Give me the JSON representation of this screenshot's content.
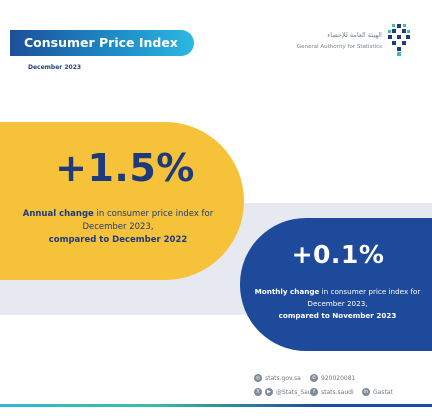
{
  "header": {
    "title": "Consumer Price Index",
    "period": "December 2023"
  },
  "logo": {
    "arabic_name": "الهيئة العامة للإحصاء",
    "english_name": "General Authority for Statistics",
    "icon": "gastat-logo-icon"
  },
  "annual": {
    "value": "+1.5%",
    "desc_bold_1": "Annual change",
    "desc_text_1": " in consumer price index for December 2023,",
    "desc_bold_2": "compared to December 2022"
  },
  "monthly": {
    "value": "+0.1%",
    "desc_bold_1": "Monthly change",
    "desc_text_1": " in consumer price index for December 2023,",
    "desc_bold_2": "compared to November 2023"
  },
  "footer": {
    "website": "stats.gov.sa",
    "twitter": "@Stats_Saudi",
    "phone": "920020081",
    "facebook": "stats.saudi",
    "linkedin": "Gastat",
    "icons": [
      "globe-icon",
      "x-icon",
      "phone-icon",
      "facebook-icon",
      "linkedin-icon"
    ]
  },
  "colors": {
    "navy": "#1f3a7a",
    "blue": "#1d4a9b",
    "yellow": "#f6c23a",
    "band": "#e6e9ef",
    "title_gradient_start": "#1d4f9a",
    "title_gradient_end": "#2cb8e2"
  }
}
